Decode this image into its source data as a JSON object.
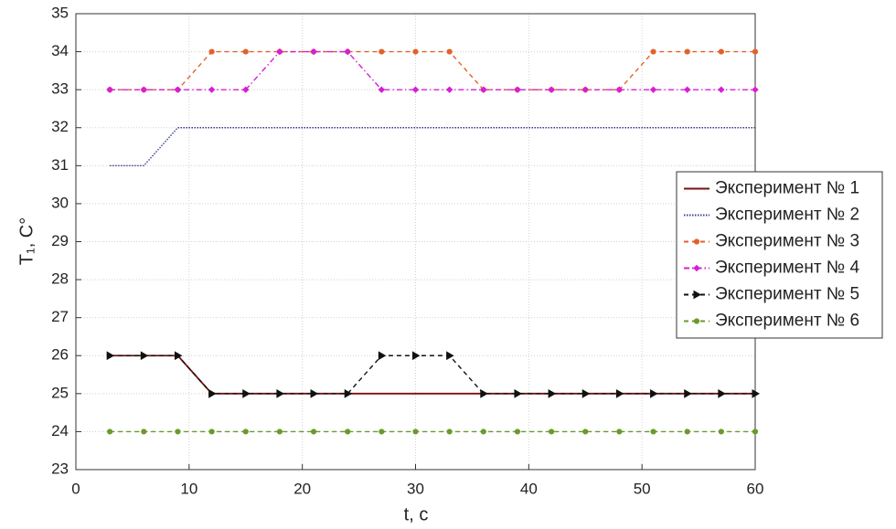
{
  "chart_data": {
    "type": "line",
    "xlabel": "t, c",
    "ylabel": "T₁, C°",
    "x": [
      3,
      6,
      9,
      12,
      15,
      18,
      21,
      24,
      27,
      30,
      33,
      36,
      39,
      42,
      45,
      48,
      51,
      54,
      57,
      60
    ],
    "xlim": [
      0,
      60
    ],
    "xticks": [
      0,
      10,
      20,
      30,
      40,
      50,
      60
    ],
    "ylim": [
      23,
      35
    ],
    "yticks": [
      23,
      24,
      25,
      26,
      27,
      28,
      29,
      30,
      31,
      32,
      33,
      34,
      35
    ],
    "grid": true,
    "legend": "right",
    "series": [
      {
        "name": "Эксперимент № 1",
        "color": "#7b1010",
        "linestyle": "solid",
        "marker": "none",
        "values": [
          26,
          26,
          26,
          25,
          25,
          25,
          25,
          25,
          25,
          25,
          25,
          25,
          25,
          25,
          25,
          25,
          25,
          25,
          25,
          25
        ]
      },
      {
        "name": "Эксперимент № 2",
        "color": "#3a3f8f",
        "linestyle": "dotted",
        "marker": "none",
        "values": [
          31,
          31,
          32,
          32,
          32,
          32,
          32,
          32,
          32,
          32,
          32,
          32,
          32,
          32,
          32,
          32,
          32,
          32,
          32,
          32
        ]
      },
      {
        "name": "Эксперимент № 3",
        "color": "#e0622a",
        "linestyle": "dashed",
        "marker": "circle",
        "values": [
          33,
          33,
          33,
          34,
          34,
          34,
          34,
          34,
          34,
          34,
          34,
          33,
          33,
          33,
          33,
          33,
          34,
          34,
          34,
          34
        ]
      },
      {
        "name": "Эксперимент № 4",
        "color": "#d61fd6",
        "linestyle": "dashdot",
        "marker": "diamond",
        "values": [
          33,
          33,
          33,
          33,
          33,
          34,
          34,
          34,
          33,
          33,
          33,
          33,
          33,
          33,
          33,
          33,
          33,
          33,
          33,
          33
        ]
      },
      {
        "name": "Эксперимент № 5",
        "color": "#111111",
        "linestyle": "dashed",
        "marker": "triangle",
        "values": [
          26,
          26,
          26,
          25,
          25,
          25,
          25,
          25,
          26,
          26,
          26,
          25,
          25,
          25,
          25,
          25,
          25,
          25,
          25,
          25
        ]
      },
      {
        "name": "Эксперимент № 6",
        "color": "#6a9a2a",
        "linestyle": "dashed",
        "marker": "circle",
        "values": [
          24,
          24,
          24,
          24,
          24,
          24,
          24,
          24,
          24,
          24,
          24,
          24,
          24,
          24,
          24,
          24,
          24,
          24,
          24,
          24
        ]
      }
    ]
  }
}
